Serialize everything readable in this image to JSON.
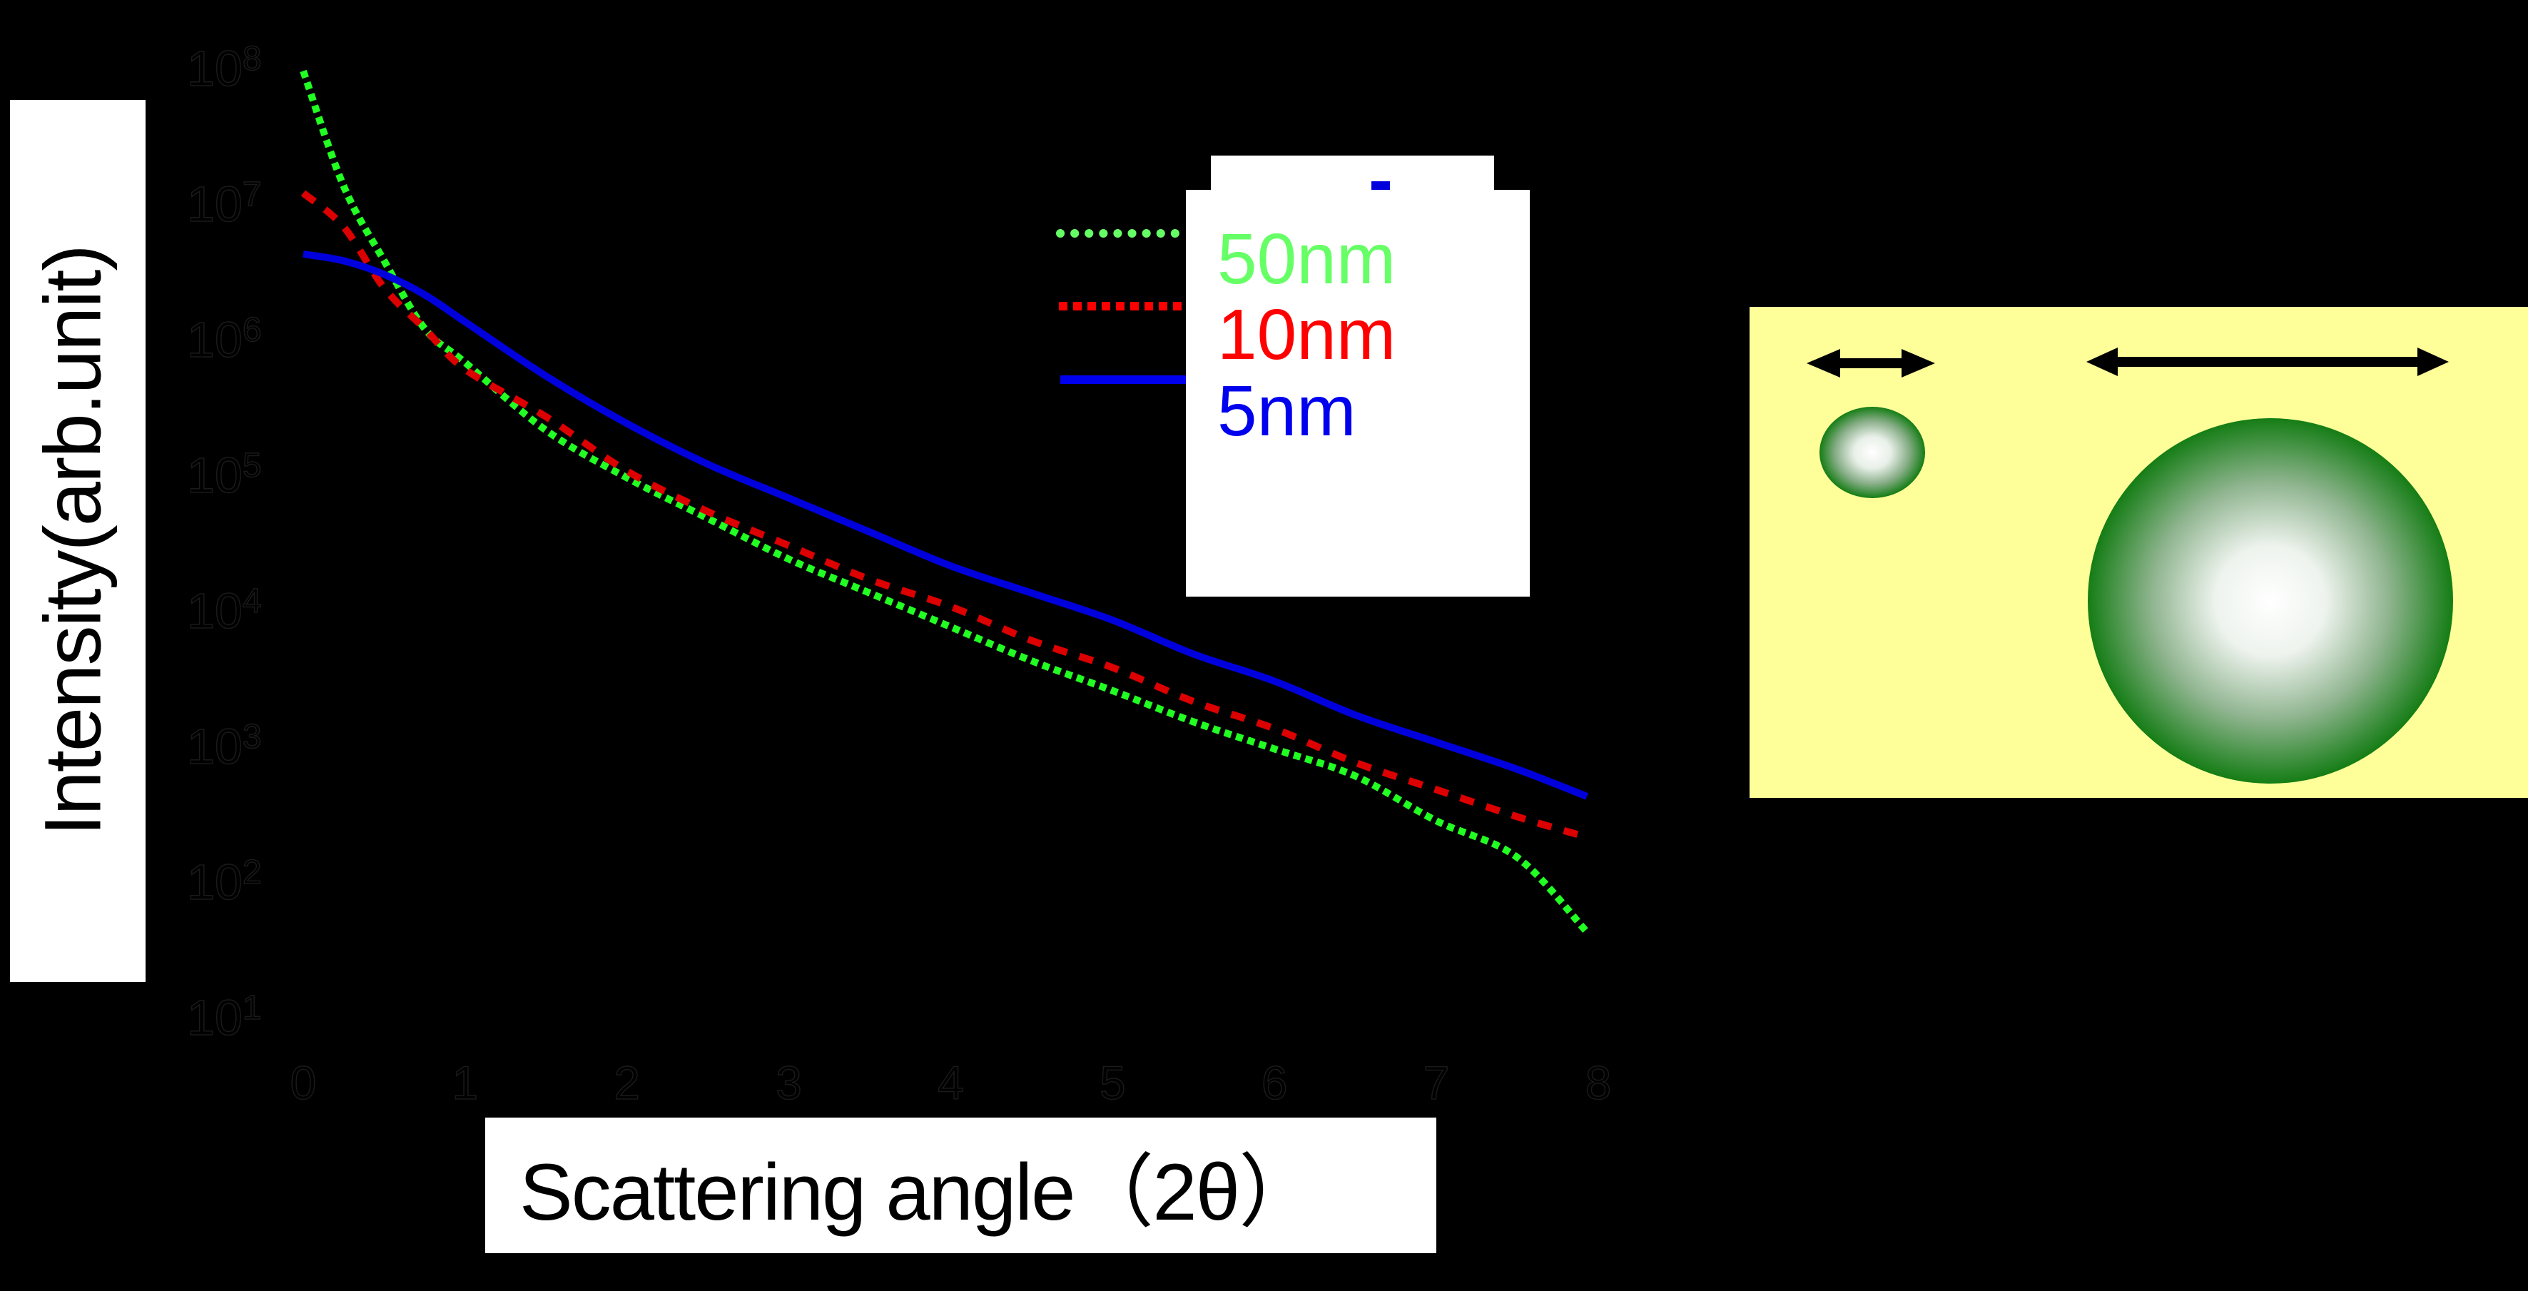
{
  "chart_data": {
    "type": "line",
    "title": "",
    "xlabel": "Scattering angle（2θ）",
    "ylabel": "Intensity(arb.unit)",
    "x_scale": "linear",
    "y_scale": "log",
    "xlim": [
      0,
      8
    ],
    "ylim": [
      1,
      100000000
    ],
    "x_ticks": [
      "0",
      "1",
      "2",
      "3",
      "4",
      "5",
      "6",
      "7",
      "8"
    ],
    "y_ticks": [
      "10^8",
      "10^7",
      "10^6",
      "10^5",
      "10^4",
      "10^3",
      "10^2",
      "10^1"
    ],
    "grid": false,
    "legend_position": "upper-right-inside",
    "x": [
      0,
      0.25,
      0.5,
      0.75,
      1,
      1.5,
      2,
      2.5,
      3,
      3.5,
      4,
      4.5,
      5,
      5.5,
      6,
      6.5,
      7,
      7.5,
      7.93
    ],
    "series": [
      {
        "name": "50nm",
        "color": "#22ff22",
        "style": "dotted",
        "log10_values": [
          7.95,
          7.1,
          6.55,
          6.05,
          5.8,
          5.3,
          4.95,
          4.65,
          4.35,
          4.1,
          3.85,
          3.6,
          3.38,
          3.15,
          2.95,
          2.75,
          2.42,
          2.15,
          1.6
        ],
        "values": [
          89000000,
          12600000,
          3550000,
          1120000,
          631000,
          200000,
          89100,
          44700,
          22400,
          12600,
          7080,
          3980,
          2400,
          1410,
          891,
          562,
          263,
          141,
          40
        ]
      },
      {
        "name": "10nm",
        "color": "#dd0000",
        "style": "dashed",
        "log10_values": [
          7.05,
          6.8,
          6.35,
          6.05,
          5.75,
          5.4,
          5.0,
          4.7,
          4.45,
          4.2,
          4.0,
          3.75,
          3.55,
          3.3,
          3.1,
          2.85,
          2.65,
          2.45,
          2.3
        ],
        "values": [
          11200000,
          6310000,
          2240000,
          1120000,
          562000,
          251000,
          100000,
          50100,
          28200,
          15800,
          10000,
          5620,
          3550,
          2000,
          1260,
          708,
          447,
          282,
          200
        ]
      },
      {
        "name": "5nm",
        "color": "#0000dd",
        "style": "solid",
        "log10_values": [
          6.6,
          6.55,
          6.45,
          6.3,
          6.1,
          5.7,
          5.35,
          5.05,
          4.8,
          4.55,
          4.3,
          4.1,
          3.9,
          3.65,
          3.45,
          3.2,
          3.0,
          2.8,
          2.6
        ],
        "values": [
          3980000,
          3550000,
          2820000,
          2000000,
          1260000,
          501000,
          224000,
          112000,
          63100,
          35500,
          20000,
          12600,
          7940,
          4470,
          2820,
          1580,
          1000,
          631,
          398
        ]
      }
    ]
  },
  "axes": {
    "y_label": "Intensity(arb.unit)",
    "x_label": "Scattering angle（2θ）",
    "y_ticks": [
      {
        "base": "10",
        "exp": "8"
      },
      {
        "base": "10",
        "exp": "7"
      },
      {
        "base": "10",
        "exp": "6"
      },
      {
        "base": "10",
        "exp": "5"
      },
      {
        "base": "10",
        "exp": "4"
      },
      {
        "base": "10",
        "exp": "3"
      },
      {
        "base": "10",
        "exp": "2"
      },
      {
        "base": "10",
        "exp": "1"
      }
    ],
    "x_ticks": [
      "0",
      "1",
      "2",
      "3",
      "4",
      "5",
      "6",
      "7",
      "8"
    ]
  },
  "legend": {
    "items": [
      {
        "label": "50nm",
        "color": "#66ff66",
        "line_color": "#66ff66",
        "style": "dotted"
      },
      {
        "label": "10nm",
        "color": "#ff0000",
        "line_color": "#ff0000",
        "style": "dashed"
      },
      {
        "label": "5nm",
        "color": "#0000ee",
        "line_color": "#0000ee",
        "style": "solid"
      }
    ]
  },
  "diagram": {
    "background": "#ffff99",
    "particles": [
      {
        "name": "small-particle",
        "edge_color": "#157d15",
        "center_color": "#ffffff"
      },
      {
        "name": "large-particle",
        "edge_color": "#157d15",
        "center_color": "#ffffff"
      }
    ],
    "arrow_color": "#000000"
  },
  "colors": {
    "background": "#000000",
    "tick_outline": "#1a1a1a",
    "label_box": "#ffffff"
  }
}
